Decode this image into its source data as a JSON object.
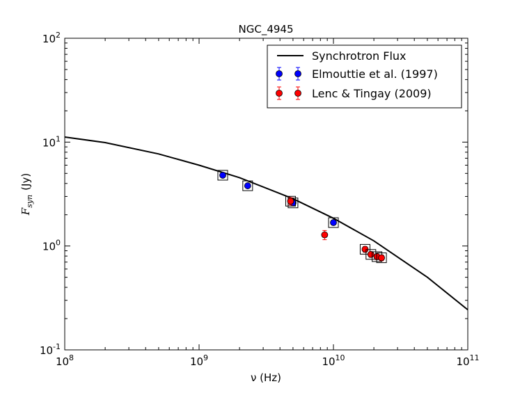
{
  "chart_data": {
    "type": "scatter",
    "title": "NGC_4945",
    "xlabel": "ν (Hz)",
    "ylabel_main": "F",
    "ylabel_sub": "syn",
    "ylabel_unit": "(Jy)",
    "xscale": "log",
    "yscale": "log",
    "xlim": [
      100000000,
      100000000000
    ],
    "ylim": [
      0.1,
      100
    ],
    "x_ticks": [
      {
        "value": 100000000,
        "base": "10",
        "exp": "8"
      },
      {
        "value": 1000000000,
        "base": "10",
        "exp": "9"
      },
      {
        "value": 10000000000,
        "base": "10",
        "exp": "10"
      },
      {
        "value": 100000000000,
        "base": "10",
        "exp": "11"
      }
    ],
    "y_ticks": [
      {
        "value": 0.1,
        "base": "10",
        "exp": "-1"
      },
      {
        "value": 1,
        "base": "10",
        "exp": "0"
      },
      {
        "value": 10,
        "base": "10",
        "exp": "1"
      },
      {
        "value": 100,
        "base": "10",
        "exp": "2"
      }
    ],
    "legend_position": "top-right",
    "series": [
      {
        "name": "Synchrotron Flux",
        "kind": "line",
        "color": "#000000",
        "x": [
          100000000,
          200000000,
          500000000,
          1000000000,
          2000000000,
          5000000000,
          10000000000,
          20000000000,
          50000000000,
          100000000000
        ],
        "y": [
          11.2,
          9.9,
          7.7,
          6.0,
          4.55,
          2.85,
          1.85,
          1.12,
          0.5,
          0.243
        ]
      },
      {
        "name": "Elmouttie et al. (1997)",
        "kind": "points",
        "color": "#0000ff",
        "x": [
          1500000000,
          2300000000,
          5000000000,
          10000000000
        ],
        "y": [
          4.8,
          3.8,
          2.6,
          1.68
        ],
        "yerr": [
          0.18,
          0.12,
          0.1,
          0.08
        ],
        "boxed": [
          true,
          true,
          true,
          true
        ]
      },
      {
        "name": "Lenc & Tingay (2009)",
        "kind": "points",
        "color": "#ff0000",
        "x": [
          4800000000,
          8600000000,
          17200000000,
          19000000000,
          21100000000,
          22800000000
        ],
        "y": [
          2.7,
          1.28,
          0.93,
          0.83,
          0.79,
          0.77
        ],
        "yerr": [
          0.22,
          0.13,
          0.06,
          0.05,
          0.05,
          0.05
        ],
        "boxed": [
          true,
          false,
          true,
          true,
          true,
          true
        ]
      }
    ]
  }
}
